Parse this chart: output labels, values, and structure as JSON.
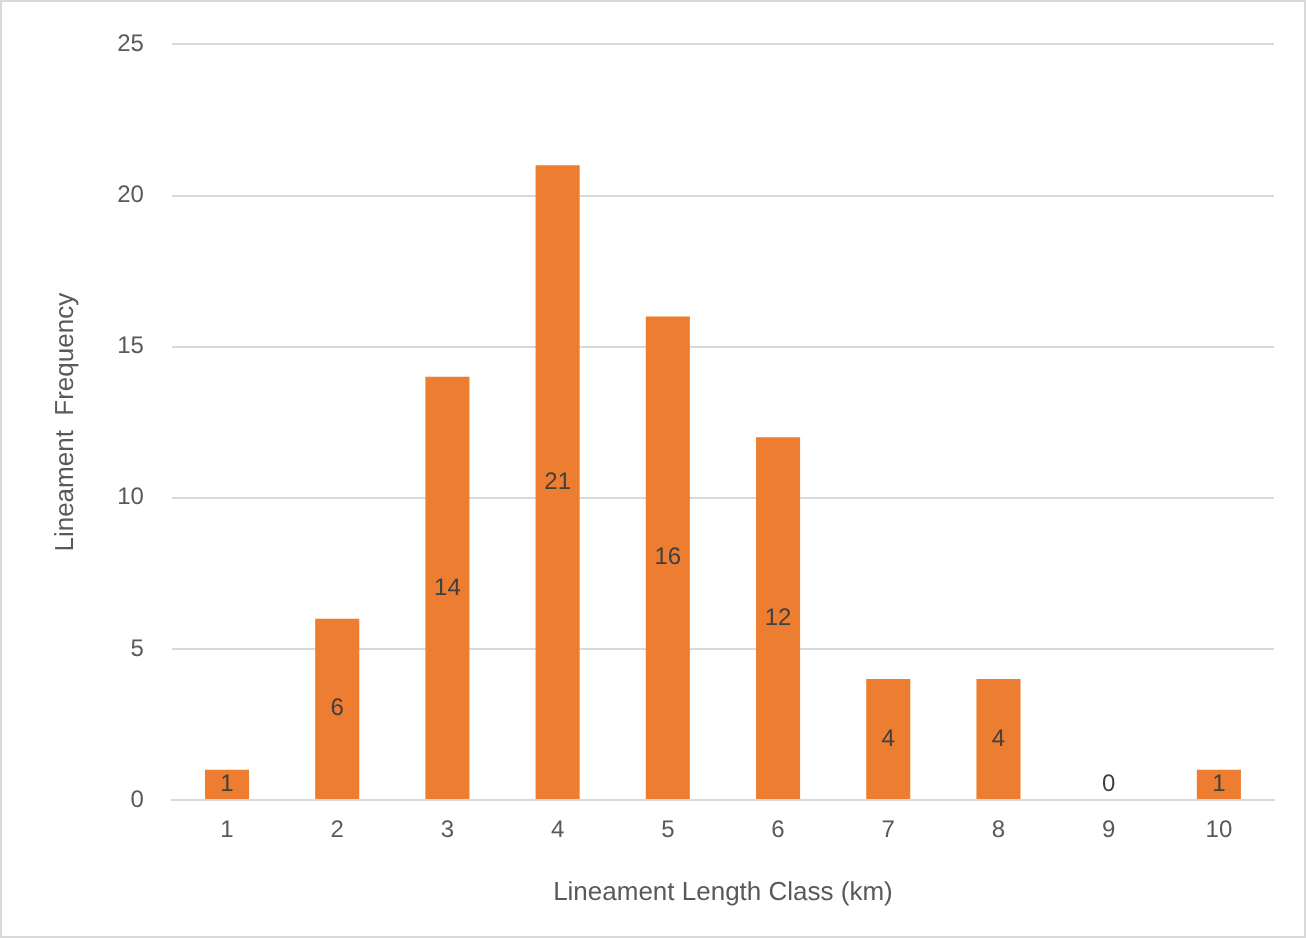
{
  "chart_data": {
    "type": "bar",
    "xlabel": "Lineament Length Class (km)",
    "ylabel": "Lineament  Frequency",
    "categories": [
      "1",
      "2",
      "3",
      "4",
      "5",
      "6",
      "7",
      "8",
      "9",
      "10"
    ],
    "values": [
      1,
      6,
      14,
      21,
      16,
      12,
      4,
      4,
      0,
      1
    ],
    "color": "#ed7d31",
    "ylim": [
      0,
      25
    ],
    "yticks": [
      0,
      5,
      10,
      15,
      20,
      25
    ],
    "grid": "y",
    "data_labels": true
  }
}
